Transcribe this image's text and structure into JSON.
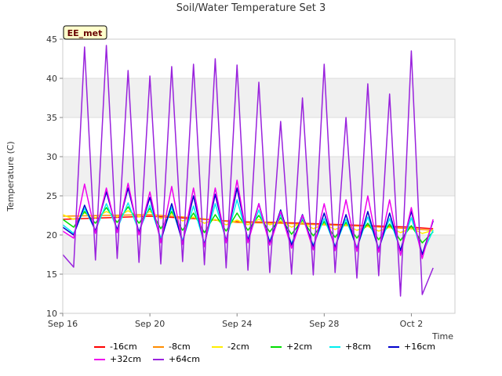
{
  "chart_data": {
    "type": "line",
    "title": "Soil/Water Temperature Set 3",
    "xlabel": "Time",
    "ylabel": "Temperature (C)",
    "station_label": "EE_met",
    "xlim": [
      "2020-09-16",
      "2020-10-04"
    ],
    "ylim": [
      10,
      45
    ],
    "yticks": [
      10,
      15,
      20,
      25,
      30,
      35,
      40,
      45
    ],
    "xticks": [
      {
        "date": "2020-09-16",
        "label": "Sep 16"
      },
      {
        "date": "2020-09-20",
        "label": "Sep 20"
      },
      {
        "date": "2020-09-24",
        "label": "Sep 24"
      },
      {
        "date": "2020-09-28",
        "label": "Sep 28"
      },
      {
        "date": "2020-10-02",
        "label": "Oct 2"
      }
    ],
    "grid": true,
    "legend_position": "bottom",
    "series": [
      {
        "name": "-16cm",
        "color": "#ff0000",
        "x": [
          "2020-09-16",
          "2020-09-18",
          "2020-09-20",
          "2020-09-22",
          "2020-09-24",
          "2020-09-26",
          "2020-09-28",
          "2020-09-30",
          "2020-10-02",
          "2020-10-03"
        ],
        "values": [
          22.0,
          22.2,
          22.4,
          22.1,
          21.7,
          21.6,
          21.4,
          21.2,
          21.0,
          20.8
        ]
      },
      {
        "name": "-8cm",
        "color": "#ff8c00",
        "x": [
          "2020-09-16",
          "2020-09-18",
          "2020-09-20",
          "2020-09-22",
          "2020-09-24",
          "2020-09-26",
          "2020-09-28",
          "2020-09-30",
          "2020-10-02",
          "2020-10-03"
        ],
        "values": [
          22.4,
          22.5,
          22.6,
          22.2,
          21.6,
          21.5,
          21.3,
          21.1,
          20.8,
          20.6
        ]
      },
      {
        "name": "-2cm",
        "color": "#ffee00",
        "x": [
          "2020-09-16",
          "2020-09-16.5",
          "2020-09-17",
          "2020-09-17.5",
          "2020-09-18",
          "2020-09-18.5",
          "2020-09-19",
          "2020-09-19.5",
          "2020-09-20",
          "2020-09-20.5",
          "2020-09-21",
          "2020-09-21.5",
          "2020-09-22",
          "2020-09-22.5",
          "2020-09-23",
          "2020-09-23.5",
          "2020-09-24",
          "2020-09-24.5",
          "2020-09-25",
          "2020-09-25.5",
          "2020-09-26",
          "2020-09-26.5",
          "2020-09-27",
          "2020-09-27.5",
          "2020-09-28",
          "2020-09-28.5",
          "2020-09-29",
          "2020-09-29.5",
          "2020-09-30",
          "2020-09-30.5",
          "2020-10-01",
          "2020-10-01.5",
          "2020-10-02",
          "2020-10-02.5",
          "2020-10-03"
        ],
        "values": [
          22.6,
          22.0,
          22.8,
          22.2,
          23.0,
          22.3,
          23.1,
          22.3,
          23.0,
          22.1,
          22.7,
          21.8,
          22.3,
          21.5,
          22.0,
          21.3,
          21.9,
          21.3,
          22.0,
          21.3,
          21.8,
          21.0,
          21.6,
          20.8,
          21.4,
          20.7,
          21.3,
          20.6,
          21.1,
          20.5,
          21.0,
          20.3,
          20.9,
          20.2,
          20.6
        ]
      },
      {
        "name": "+2cm",
        "color": "#00dd00",
        "x": [
          "2020-09-16",
          "2020-09-16.5",
          "2020-09-17",
          "2020-09-17.5",
          "2020-09-18",
          "2020-09-18.5",
          "2020-09-19",
          "2020-09-19.5",
          "2020-09-20",
          "2020-09-20.5",
          "2020-09-21",
          "2020-09-21.5",
          "2020-09-22",
          "2020-09-22.5",
          "2020-09-23",
          "2020-09-23.5",
          "2020-09-24",
          "2020-09-24.5",
          "2020-09-25",
          "2020-09-25.5",
          "2020-09-26",
          "2020-09-26.5",
          "2020-09-27",
          "2020-09-27.5",
          "2020-09-28",
          "2020-09-28.5",
          "2020-09-29",
          "2020-09-29.5",
          "2020-09-30",
          "2020-09-30.5",
          "2020-10-01",
          "2020-10-01.5",
          "2020-10-02",
          "2020-10-02.5",
          "2020-10-03"
        ],
        "values": [
          22.0,
          21.0,
          23.0,
          21.5,
          23.5,
          21.6,
          23.6,
          21.5,
          23.4,
          20.8,
          23.0,
          20.6,
          22.8,
          20.3,
          22.6,
          20.5,
          22.8,
          20.6,
          22.5,
          20.4,
          22.2,
          20.1,
          21.9,
          19.9,
          21.7,
          19.7,
          21.6,
          19.6,
          21.5,
          19.4,
          21.4,
          19.3,
          21.2,
          19.0,
          20.4
        ]
      },
      {
        "name": "+8cm",
        "color": "#00eeee",
        "x": [
          "2020-09-16",
          "2020-09-16.5",
          "2020-09-17",
          "2020-09-17.5",
          "2020-09-18",
          "2020-09-18.5",
          "2020-09-19",
          "2020-09-19.5",
          "2020-09-20",
          "2020-09-20.5",
          "2020-09-21",
          "2020-09-21.5",
          "2020-09-22",
          "2020-09-22.5",
          "2020-09-23",
          "2020-09-23.5",
          "2020-09-24",
          "2020-09-24.5",
          "2020-09-25",
          "2020-09-25.5",
          "2020-09-26",
          "2020-09-26.5",
          "2020-09-27",
          "2020-09-27.5",
          "2020-09-28",
          "2020-09-28.5",
          "2020-09-29",
          "2020-09-29.5",
          "2020-09-30",
          "2020-09-30.5",
          "2020-10-01",
          "2020-10-01.5",
          "2020-10-02",
          "2020-10-02.5",
          "2020-10-03"
        ],
        "values": [
          21.3,
          20.2,
          23.4,
          20.6,
          24.0,
          20.8,
          24.1,
          20.5,
          23.8,
          19.6,
          23.5,
          19.3,
          23.7,
          18.9,
          24.0,
          19.4,
          24.5,
          19.5,
          23.2,
          19.2,
          22.6,
          18.9,
          22.2,
          18.7,
          22.1,
          18.6,
          22.0,
          18.4,
          22.3,
          18.3,
          22.1,
          18.1,
          22.2,
          17.6,
          20.6
        ]
      },
      {
        "name": "+16cm",
        "color": "#0000cc",
        "x": [
          "2020-09-16",
          "2020-09-16.5",
          "2020-09-17",
          "2020-09-17.5",
          "2020-09-18",
          "2020-09-18.5",
          "2020-09-19",
          "2020-09-19.5",
          "2020-09-20",
          "2020-09-20.5",
          "2020-09-21",
          "2020-09-21.5",
          "2020-09-22",
          "2020-09-22.5",
          "2020-09-23",
          "2020-09-23.5",
          "2020-09-24",
          "2020-09-24.5",
          "2020-09-25",
          "2020-09-25.5",
          "2020-09-26",
          "2020-09-26.5",
          "2020-09-27",
          "2020-09-27.5",
          "2020-09-28",
          "2020-09-28.5",
          "2020-09-29",
          "2020-09-29.5",
          "2020-09-30",
          "2020-09-30.5",
          "2020-10-01",
          "2020-10-01.5",
          "2020-10-02",
          "2020-10-02.5",
          "2020-10-03"
        ],
        "values": [
          21.0,
          20.0,
          23.8,
          20.5,
          25.5,
          20.6,
          26.0,
          20.3,
          24.8,
          19.2,
          24.0,
          19.0,
          25.0,
          18.7,
          25.2,
          19.2,
          26.0,
          19.3,
          24.0,
          19.0,
          23.2,
          18.7,
          22.6,
          18.5,
          22.8,
          18.4,
          22.6,
          18.2,
          23.0,
          18.1,
          22.8,
          18.0,
          23.0,
          17.5,
          21.8
        ]
      },
      {
        "name": "+32cm",
        "color": "#ee00ee",
        "x": [
          "2020-09-16",
          "2020-09-16.5",
          "2020-09-17",
          "2020-09-17.5",
          "2020-09-18",
          "2020-09-18.5",
          "2020-09-19",
          "2020-09-19.5",
          "2020-09-20",
          "2020-09-20.5",
          "2020-09-21",
          "2020-09-21.5",
          "2020-09-22",
          "2020-09-22.5",
          "2020-09-23",
          "2020-09-23.5",
          "2020-09-24",
          "2020-09-24.5",
          "2020-09-25",
          "2020-09-25.5",
          "2020-09-26",
          "2020-09-26.5",
          "2020-09-27",
          "2020-09-27.5",
          "2020-09-28",
          "2020-09-28.5",
          "2020-09-29",
          "2020-09-29.5",
          "2020-09-30",
          "2020-09-30.5",
          "2020-10-01",
          "2020-10-01.5",
          "2020-10-02",
          "2020-10-02.5",
          "2020-10-03"
        ],
        "values": [
          20.5,
          19.6,
          26.5,
          20.2,
          26.0,
          20.3,
          26.6,
          20.0,
          25.5,
          19.0,
          26.2,
          18.8,
          26.0,
          18.5,
          26.0,
          19.0,
          27.0,
          19.0,
          24.0,
          18.7,
          23.0,
          18.3,
          22.5,
          18.1,
          24.0,
          18.0,
          24.5,
          17.9,
          25.0,
          17.8,
          24.5,
          17.4,
          23.5,
          17.0,
          22.0
        ]
      },
      {
        "name": "+64cm",
        "color": "#9922dd",
        "x": [
          "2020-09-16",
          "2020-09-16.5",
          "2020-09-17",
          "2020-09-17.5",
          "2020-09-18",
          "2020-09-18.5",
          "2020-09-19",
          "2020-09-19.5",
          "2020-09-20",
          "2020-09-20.5",
          "2020-09-21",
          "2020-09-21.5",
          "2020-09-22",
          "2020-09-22.5",
          "2020-09-23",
          "2020-09-23.5",
          "2020-09-24",
          "2020-09-24.5",
          "2020-09-25",
          "2020-09-25.5",
          "2020-09-26",
          "2020-09-26.5",
          "2020-09-27",
          "2020-09-27.5",
          "2020-09-28",
          "2020-09-28.5",
          "2020-09-29",
          "2020-09-29.5",
          "2020-09-30",
          "2020-09-30.5",
          "2020-10-01",
          "2020-10-01.5",
          "2020-10-02",
          "2020-10-02.5",
          "2020-10-03"
        ],
        "values": [
          17.5,
          15.9,
          44.0,
          16.8,
          44.2,
          17.0,
          41.0,
          16.5,
          40.3,
          16.3,
          41.5,
          16.6,
          41.8,
          16.2,
          42.5,
          15.8,
          41.7,
          15.5,
          39.5,
          15.2,
          34.5,
          15.0,
          37.5,
          14.9,
          41.8,
          15.2,
          35.0,
          14.5,
          39.3,
          14.8,
          38.0,
          12.2,
          43.5,
          12.4,
          15.8
        ]
      }
    ]
  }
}
